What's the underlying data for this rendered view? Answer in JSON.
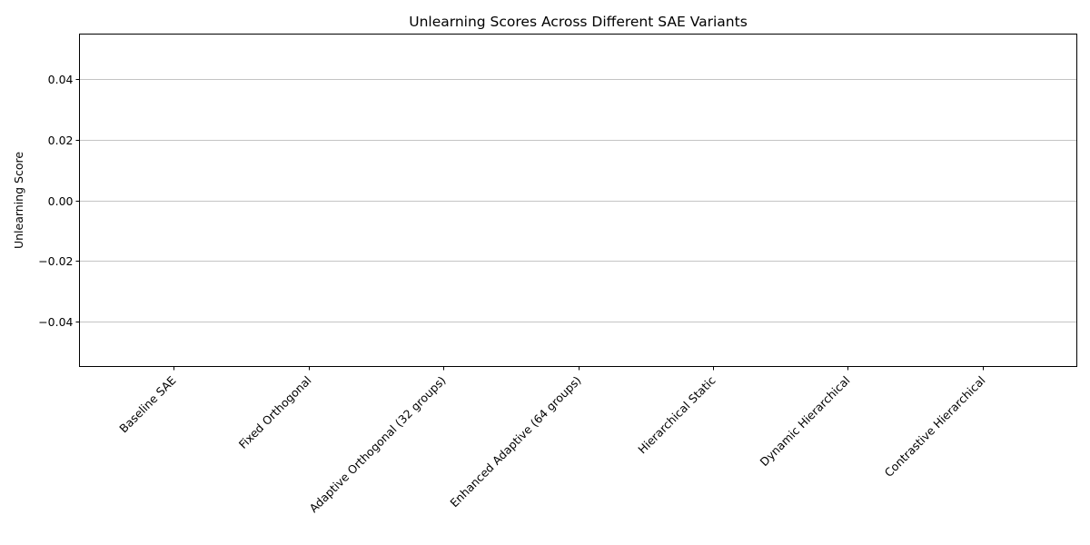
{
  "chart_data": {
    "type": "bar",
    "title": "Unlearning Scores Across Different SAE Variants",
    "xlabel": "",
    "ylabel": "Unlearning Score",
    "categories": [
      "Baseline SAE",
      "Fixed Orthogonal",
      "Adaptive Orthogonal (32 groups)",
      "Enhanced Adaptive (64 groups)",
      "Hierarchical Static",
      "Dynamic Hierarchical",
      "Contrastive Hierarchical"
    ],
    "values": [
      0,
      0,
      0,
      0,
      0,
      0,
      0
    ],
    "ylim": [
      -0.055,
      0.055
    ],
    "yticks": [
      -0.04,
      -0.02,
      0.0,
      0.02,
      0.04
    ],
    "ytick_labels": [
      "−0.04",
      "−0.02",
      "0.00",
      "0.02",
      "0.04"
    ],
    "grid": "y",
    "colors": {
      "grid": "#b0b0b0",
      "axis": "#000000",
      "bar": "#1f77b4"
    }
  }
}
